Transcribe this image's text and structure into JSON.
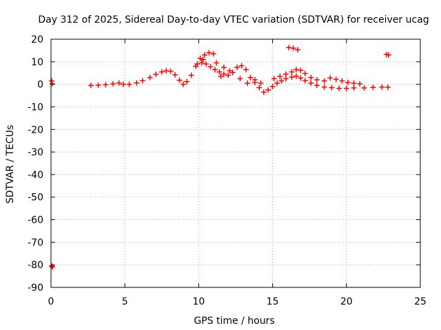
{
  "chart_data": {
    "type": "scatter",
    "title": "Day 312 of 2025, Sidereal Day-to-day VTEC variation (SDTVAR) for receiver ucag",
    "xlabel": "GPS time / hours",
    "ylabel": "SDTVAR / TECUs",
    "xlim": [
      0,
      25
    ],
    "ylim": [
      -90,
      20
    ],
    "xticks": [
      0,
      5,
      10,
      15,
      20,
      25
    ],
    "yticks": [
      20,
      10,
      0,
      -10,
      -20,
      -30,
      -40,
      -50,
      -60,
      -70,
      -80,
      -90
    ],
    "grid": true,
    "marker": "+",
    "marker_color": "#ff0000",
    "series": [
      {
        "name": "SDTVAR",
        "points": [
          [
            0.05,
            1.5
          ],
          [
            0.08,
            0.2
          ],
          [
            0.05,
            -80.5
          ],
          [
            0.1,
            -81.0
          ],
          [
            2.7,
            -0.5
          ],
          [
            3.2,
            -0.4
          ],
          [
            3.7,
            -0.2
          ],
          [
            4.2,
            0.2
          ],
          [
            4.6,
            0.6
          ],
          [
            4.9,
            0.0
          ],
          [
            5.3,
            0.0
          ],
          [
            5.8,
            0.6
          ],
          [
            6.2,
            1.6
          ],
          [
            6.7,
            3.0
          ],
          [
            7.1,
            4.4
          ],
          [
            7.5,
            5.5
          ],
          [
            7.8,
            6.0
          ],
          [
            8.1,
            5.8
          ],
          [
            8.4,
            4.2
          ],
          [
            8.7,
            1.8
          ],
          [
            8.95,
            0.0
          ],
          [
            9.2,
            1.2
          ],
          [
            9.5,
            4.0
          ],
          [
            9.8,
            8.0
          ],
          [
            10.1,
            11.5
          ],
          [
            10.4,
            13.0
          ],
          [
            10.7,
            14.0
          ],
          [
            11.0,
            13.5
          ],
          [
            9.9,
            9.0
          ],
          [
            10.2,
            9.5
          ],
          [
            10.5,
            9.0
          ],
          [
            10.8,
            7.8
          ],
          [
            11.1,
            6.5
          ],
          [
            11.4,
            5.5
          ],
          [
            11.7,
            4.5
          ],
          [
            12.0,
            4.0
          ],
          [
            12.3,
            5.2
          ],
          [
            12.6,
            7.5
          ],
          [
            12.9,
            8.2
          ],
          [
            13.2,
            6.5
          ],
          [
            13.5,
            3.0
          ],
          [
            13.8,
            0.8
          ],
          [
            14.1,
            -1.5
          ],
          [
            14.4,
            -3.5
          ],
          [
            14.7,
            -2.5
          ],
          [
            15.0,
            -1.0
          ],
          [
            15.3,
            0.5
          ],
          [
            15.6,
            1.5
          ],
          [
            15.9,
            2.5
          ],
          [
            16.3,
            3.2
          ],
          [
            16.6,
            3.6
          ],
          [
            16.9,
            2.8
          ],
          [
            17.2,
            1.6
          ],
          [
            17.6,
            0.5
          ],
          [
            18.0,
            -0.5
          ],
          [
            18.5,
            -1.2
          ],
          [
            19.0,
            -1.5
          ],
          [
            19.5,
            -1.8
          ],
          [
            20.0,
            -1.8
          ],
          [
            20.5,
            -1.6
          ],
          [
            21.2,
            -1.6
          ],
          [
            21.8,
            -1.4
          ],
          [
            22.4,
            -1.2
          ],
          [
            22.8,
            -1.3
          ],
          [
            13.8,
            2.0
          ],
          [
            14.2,
            0.5
          ],
          [
            15.1,
            2.5
          ],
          [
            15.5,
            3.5
          ],
          [
            15.9,
            4.5
          ],
          [
            16.3,
            5.5
          ],
          [
            16.6,
            6.5
          ],
          [
            16.9,
            6.2
          ],
          [
            17.2,
            4.8
          ],
          [
            17.6,
            3.0
          ],
          [
            18.0,
            2.0
          ],
          [
            18.5,
            1.5
          ],
          [
            18.9,
            2.8
          ],
          [
            19.3,
            2.2
          ],
          [
            19.7,
            1.5
          ],
          [
            20.1,
            0.8
          ],
          [
            20.5,
            0.5
          ],
          [
            20.9,
            0.2
          ],
          [
            10.3,
            11.0
          ],
          [
            11.2,
            9.5
          ],
          [
            11.7,
            7.5
          ],
          [
            12.1,
            6.0
          ],
          [
            11.5,
            3.5
          ],
          [
            12.8,
            2.5
          ],
          [
            13.3,
            0.5
          ],
          [
            16.1,
            16.3
          ],
          [
            16.4,
            16.0
          ],
          [
            16.7,
            15.3
          ],
          [
            22.7,
            13.2
          ],
          [
            22.85,
            13.0
          ]
        ]
      }
    ]
  }
}
